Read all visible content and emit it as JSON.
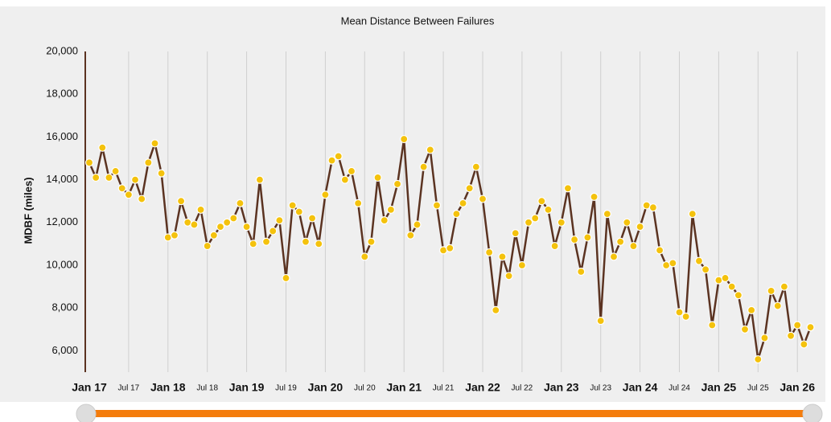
{
  "chart_data": {
    "type": "line",
    "title": "Mean Distance Between Failures",
    "y_label": "MDBF (miles)",
    "categories": [
      "Jan 17",
      null,
      null,
      null,
      null,
      null,
      "Jul 17",
      null,
      null,
      null,
      null,
      null,
      "Jan 18",
      null,
      null,
      null,
      null,
      null,
      "Jul 18",
      null,
      null,
      null,
      null,
      null,
      "Jan 19",
      null,
      null,
      null,
      null,
      null,
      "Jul 19",
      null,
      null,
      null,
      null,
      null,
      "Jan 20",
      null,
      null,
      null,
      null,
      null,
      "Jul 20",
      null,
      null,
      null,
      null,
      null,
      "Jan 21",
      null,
      null,
      null,
      null,
      null,
      "Jul 21",
      null,
      null,
      null,
      null,
      null,
      "Jan 22",
      null,
      null,
      null,
      null,
      null,
      "Jul 22",
      null,
      null,
      null,
      null,
      null,
      "Jan 23",
      null,
      null,
      null,
      null,
      null,
      "Jul 23",
      null,
      null,
      null,
      null,
      null,
      "Jan 24",
      null,
      null,
      null,
      null,
      null,
      "Jul 24",
      null,
      null,
      null,
      null,
      null,
      "Jan 25",
      null,
      null,
      null,
      null,
      null,
      "Jul 25",
      null,
      null,
      null,
      null,
      null,
      "Jan 26",
      null,
      null
    ],
    "series": [
      {
        "name": "MDBF",
        "color": "#5b3321",
        "marker_color": "#f4c20d",
        "values": [
          14800,
          14100,
          15500,
          14100,
          14400,
          13600,
          13300,
          14000,
          13100,
          14800,
          15700,
          14300,
          11300,
          11400,
          13000,
          12000,
          11900,
          12600,
          10900,
          11400,
          11800,
          12000,
          12200,
          12900,
          11800,
          11000,
          14000,
          11100,
          11600,
          12100,
          9400,
          12800,
          12500,
          11100,
          12200,
          11000,
          13300,
          14900,
          15100,
          14000,
          14400,
          12900,
          10400,
          11100,
          14100,
          12100,
          12600,
          13800,
          15900,
          11400,
          11900,
          14600,
          15400,
          12800,
          10700,
          10800,
          12400,
          12900,
          13600,
          14600,
          13100,
          10600,
          7900,
          10400,
          9500,
          11500,
          10000,
          12000,
          12200,
          13000,
          12600,
          10900,
          12000,
          13600,
          11200,
          9700,
          11300,
          13200,
          7400,
          12400,
          10400,
          11100,
          12000,
          10900,
          11800,
          12800,
          12700,
          10700,
          10000,
          10100,
          7800,
          7600,
          12400,
          10200,
          9800,
          7200,
          9300,
          9400,
          9000,
          8600,
          7000,
          7900,
          5600,
          6600,
          8800,
          8100,
          9000,
          6700,
          7200,
          6300,
          7100
        ]
      }
    ],
    "ylim": [
      5000,
      20000
    ],
    "yticks": [
      {
        "value": 6000,
        "label": "6,000"
      },
      {
        "value": 8000,
        "label": "8,000"
      },
      {
        "value": 10000,
        "label": "10,000"
      },
      {
        "value": 12000,
        "label": "12,000"
      },
      {
        "value": 14000,
        "label": "14,000"
      },
      {
        "value": 16000,
        "label": "16,000"
      },
      {
        "value": 18000,
        "label": "18,000"
      },
      {
        "value": 20000,
        "label": "20,000"
      }
    ],
    "xgrid": true,
    "ygrid": false
  }
}
